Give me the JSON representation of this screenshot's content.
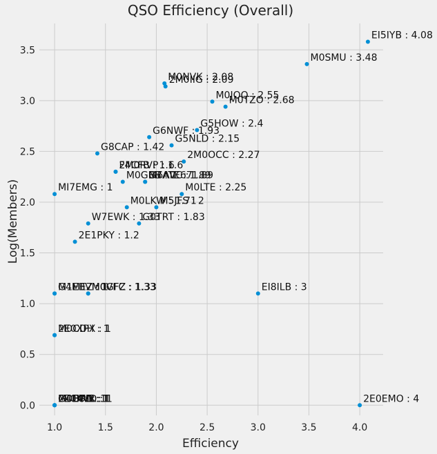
{
  "chart_data": {
    "type": "scatter",
    "title": "QSO Efficiency (Overall)",
    "xlabel": "Efficiency",
    "ylabel": "Log(Members)",
    "xlim": [
      0.85,
      4.23
    ],
    "ylim": [
      -0.1,
      3.76
    ],
    "xticks": [
      1.0,
      1.5,
      2.0,
      2.5,
      3.0,
      3.5,
      4.0
    ],
    "xtick_labels": [
      "1.0",
      "1.5",
      "2.0",
      "2.5",
      "3.0",
      "3.5",
      "4.0"
    ],
    "yticks": [
      0.0,
      0.5,
      1.0,
      1.5,
      2.0,
      2.5,
      3.0,
      3.5
    ],
    "ytick_labels": [
      "0.0",
      "0.5",
      "1.0",
      "1.5",
      "2.0",
      "2.5",
      "3.0",
      "3.5"
    ],
    "grid": true,
    "marker_color": "#008fd5",
    "points": [
      {
        "x": 4.08,
        "y": 3.58,
        "label": "EI5IYB : 4.08"
      },
      {
        "x": 3.48,
        "y": 3.36,
        "label": "M0SMU : 3.48"
      },
      {
        "x": 2.08,
        "y": 3.17,
        "label": "M0NVK : 2.08"
      },
      {
        "x": 2.09,
        "y": 3.14,
        "label": "2M0IIG : 2.09"
      },
      {
        "x": 2.55,
        "y": 2.99,
        "label": "M0JQQ : 2.55"
      },
      {
        "x": 2.68,
        "y": 2.94,
        "label": "M0TZO : 2.68"
      },
      {
        "x": 2.4,
        "y": 2.71,
        "label": "G5HOW : 2.4"
      },
      {
        "x": 1.93,
        "y": 2.64,
        "label": "G6NWF : 1.93"
      },
      {
        "x": 2.15,
        "y": 2.56,
        "label": "G5NLD : 2.15"
      },
      {
        "x": 1.42,
        "y": 2.48,
        "label": "G8CAP : 1.42"
      },
      {
        "x": 2.27,
        "y": 2.4,
        "label": "2M0OCC : 2.27"
      },
      {
        "x": 1.6,
        "y": 2.3,
        "label": "2M0RVP : 1.6"
      },
      {
        "x": 1.6,
        "y": 2.3,
        "label": "F4CFB : 1.6"
      },
      {
        "x": 1.67,
        "y": 2.2,
        "label": "M0GBB : 1.67"
      },
      {
        "x": 1.89,
        "y": 2.2,
        "label": "M6AVC : 1.89"
      },
      {
        "x": 1.89,
        "y": 2.2,
        "label": "G7ATE : 1.89"
      },
      {
        "x": 1.0,
        "y": 2.08,
        "label": "MI7EMG : 1"
      },
      {
        "x": 2.25,
        "y": 2.08,
        "label": "M0LTE : 2.25"
      },
      {
        "x": 1.71,
        "y": 1.95,
        "label": "M0LKW : 1.71"
      },
      {
        "x": 2.0,
        "y": 1.95,
        "label": "M5JFS : 2"
      },
      {
        "x": 1.33,
        "y": 1.79,
        "label": "W7EWK : 1.33"
      },
      {
        "x": 1.83,
        "y": 1.79,
        "label": "G0TRT : 1.83"
      },
      {
        "x": 1.2,
        "y": 1.61,
        "label": "2E1PKY : 1.2"
      },
      {
        "x": 1.0,
        "y": 1.1,
        "label": "G4MEZ : 1"
      },
      {
        "x": 1.0,
        "y": 1.1,
        "label": "M1EBV : 1"
      },
      {
        "x": 1.33,
        "y": 1.1,
        "label": "M0GFZ : 1.33"
      },
      {
        "x": 1.33,
        "y": 1.1,
        "label": "M0VFC : 1.33"
      },
      {
        "x": 3.0,
        "y": 1.1,
        "label": "EI8ILB : 3"
      },
      {
        "x": 1.0,
        "y": 0.69,
        "label": "2E0XPX : 1"
      },
      {
        "x": 1.0,
        "y": 0.69,
        "label": "M0CDH : 1"
      },
      {
        "x": 4.0,
        "y": 0.0,
        "label": "2E0EMO : 4"
      },
      {
        "x": 1.0,
        "y": 0.0,
        "label": "M0BWR : 1"
      },
      {
        "x": 1.0,
        "y": 0.0,
        "label": "2E0KVD : 1"
      },
      {
        "x": 1.0,
        "y": 0.0,
        "label": "M0DRN : 1"
      },
      {
        "x": 1.0,
        "y": 0.0,
        "label": "G4EOL : 1"
      },
      {
        "x": 1.0,
        "y": 0.0,
        "label": "M0CTO : 1"
      }
    ]
  }
}
